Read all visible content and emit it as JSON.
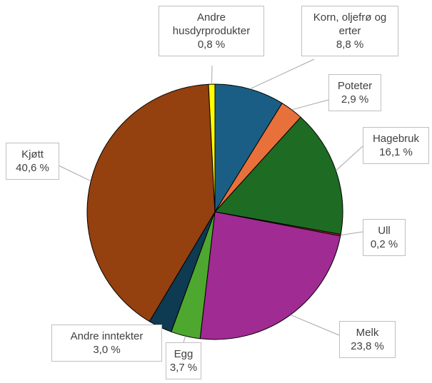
{
  "chart_data": {
    "type": "pie",
    "categories": [
      "Korn, oljefrø og erter",
      "Poteter",
      "Hagebruk",
      "Ull",
      "Melk",
      "Egg",
      "Andre inntekter",
      "Kjøtt",
      "Andre husdyrprodukter"
    ],
    "values": [
      8.8,
      2.9,
      16.1,
      0.2,
      23.8,
      3.7,
      3.0,
      40.6,
      0.8
    ],
    "value_labels": [
      "8,8 %",
      "2,9 %",
      "16,1 %",
      "0,2 %",
      "23,8 %",
      "3,7 %",
      "3,0 %",
      "40,6 %",
      "0,8 %"
    ],
    "colors": [
      "#1a5e85",
      "#e8703a",
      "#1e6b24",
      "#c0282f",
      "#a02b93",
      "#4ea72e",
      "#0e3a52",
      "#94400f",
      "#ffff00"
    ]
  }
}
